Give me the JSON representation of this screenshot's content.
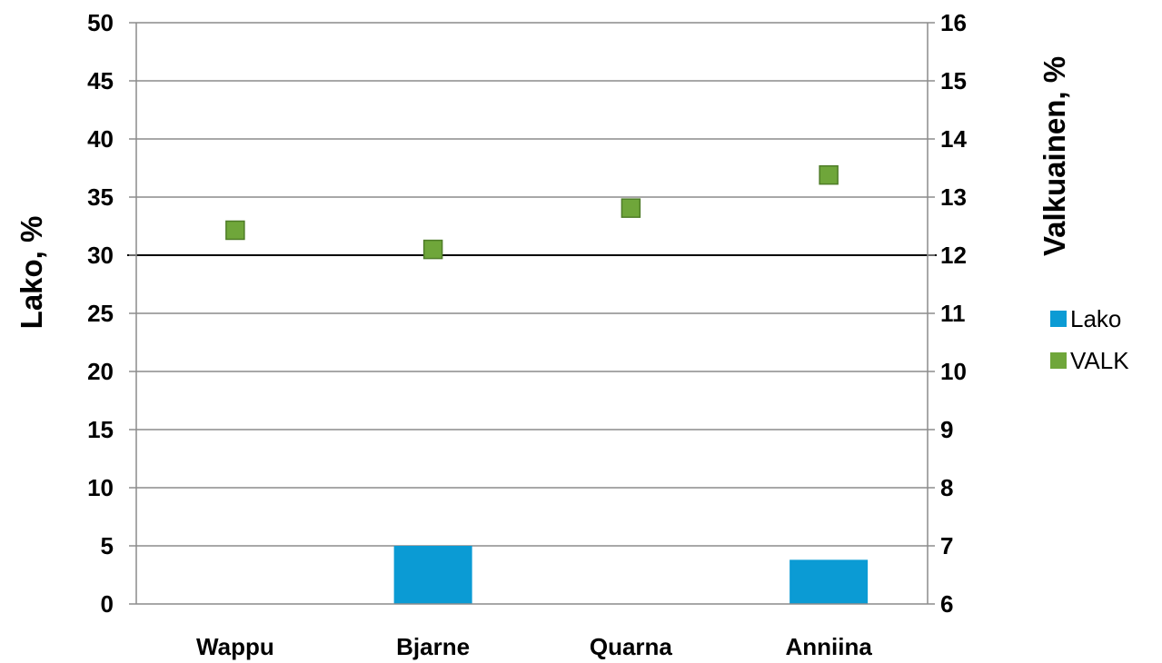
{
  "chart_data": {
    "type": "bar",
    "categories": [
      "Wappu",
      "Bjarne",
      "Quarna",
      "Anniina"
    ],
    "ylabel": "Lako, %",
    "y2label": "Valkuainen, %",
    "ylim": [
      0,
      50
    ],
    "y2lim": [
      6,
      16
    ],
    "yticks": [
      "0",
      "5",
      "10",
      "15",
      "20",
      "25",
      "30",
      "35",
      "40",
      "45",
      "50"
    ],
    "y2ticks": [
      "6",
      "7",
      "8",
      "9",
      "10",
      "11",
      "12",
      "13",
      "14",
      "15",
      "16"
    ],
    "reference_line": {
      "axis": "y2",
      "value": 12
    },
    "grid": true,
    "legend_position": "right",
    "series": [
      {
        "name": "Lako",
        "type": "bar",
        "axis": "y",
        "color": "#0B9BD4",
        "values": [
          0,
          5,
          0,
          3.8
        ]
      },
      {
        "name": "VALK",
        "type": "scatter",
        "axis": "y2",
        "color": "#6FA63A",
        "values": [
          12.43,
          12.1,
          12.81,
          13.38
        ]
      }
    ]
  }
}
